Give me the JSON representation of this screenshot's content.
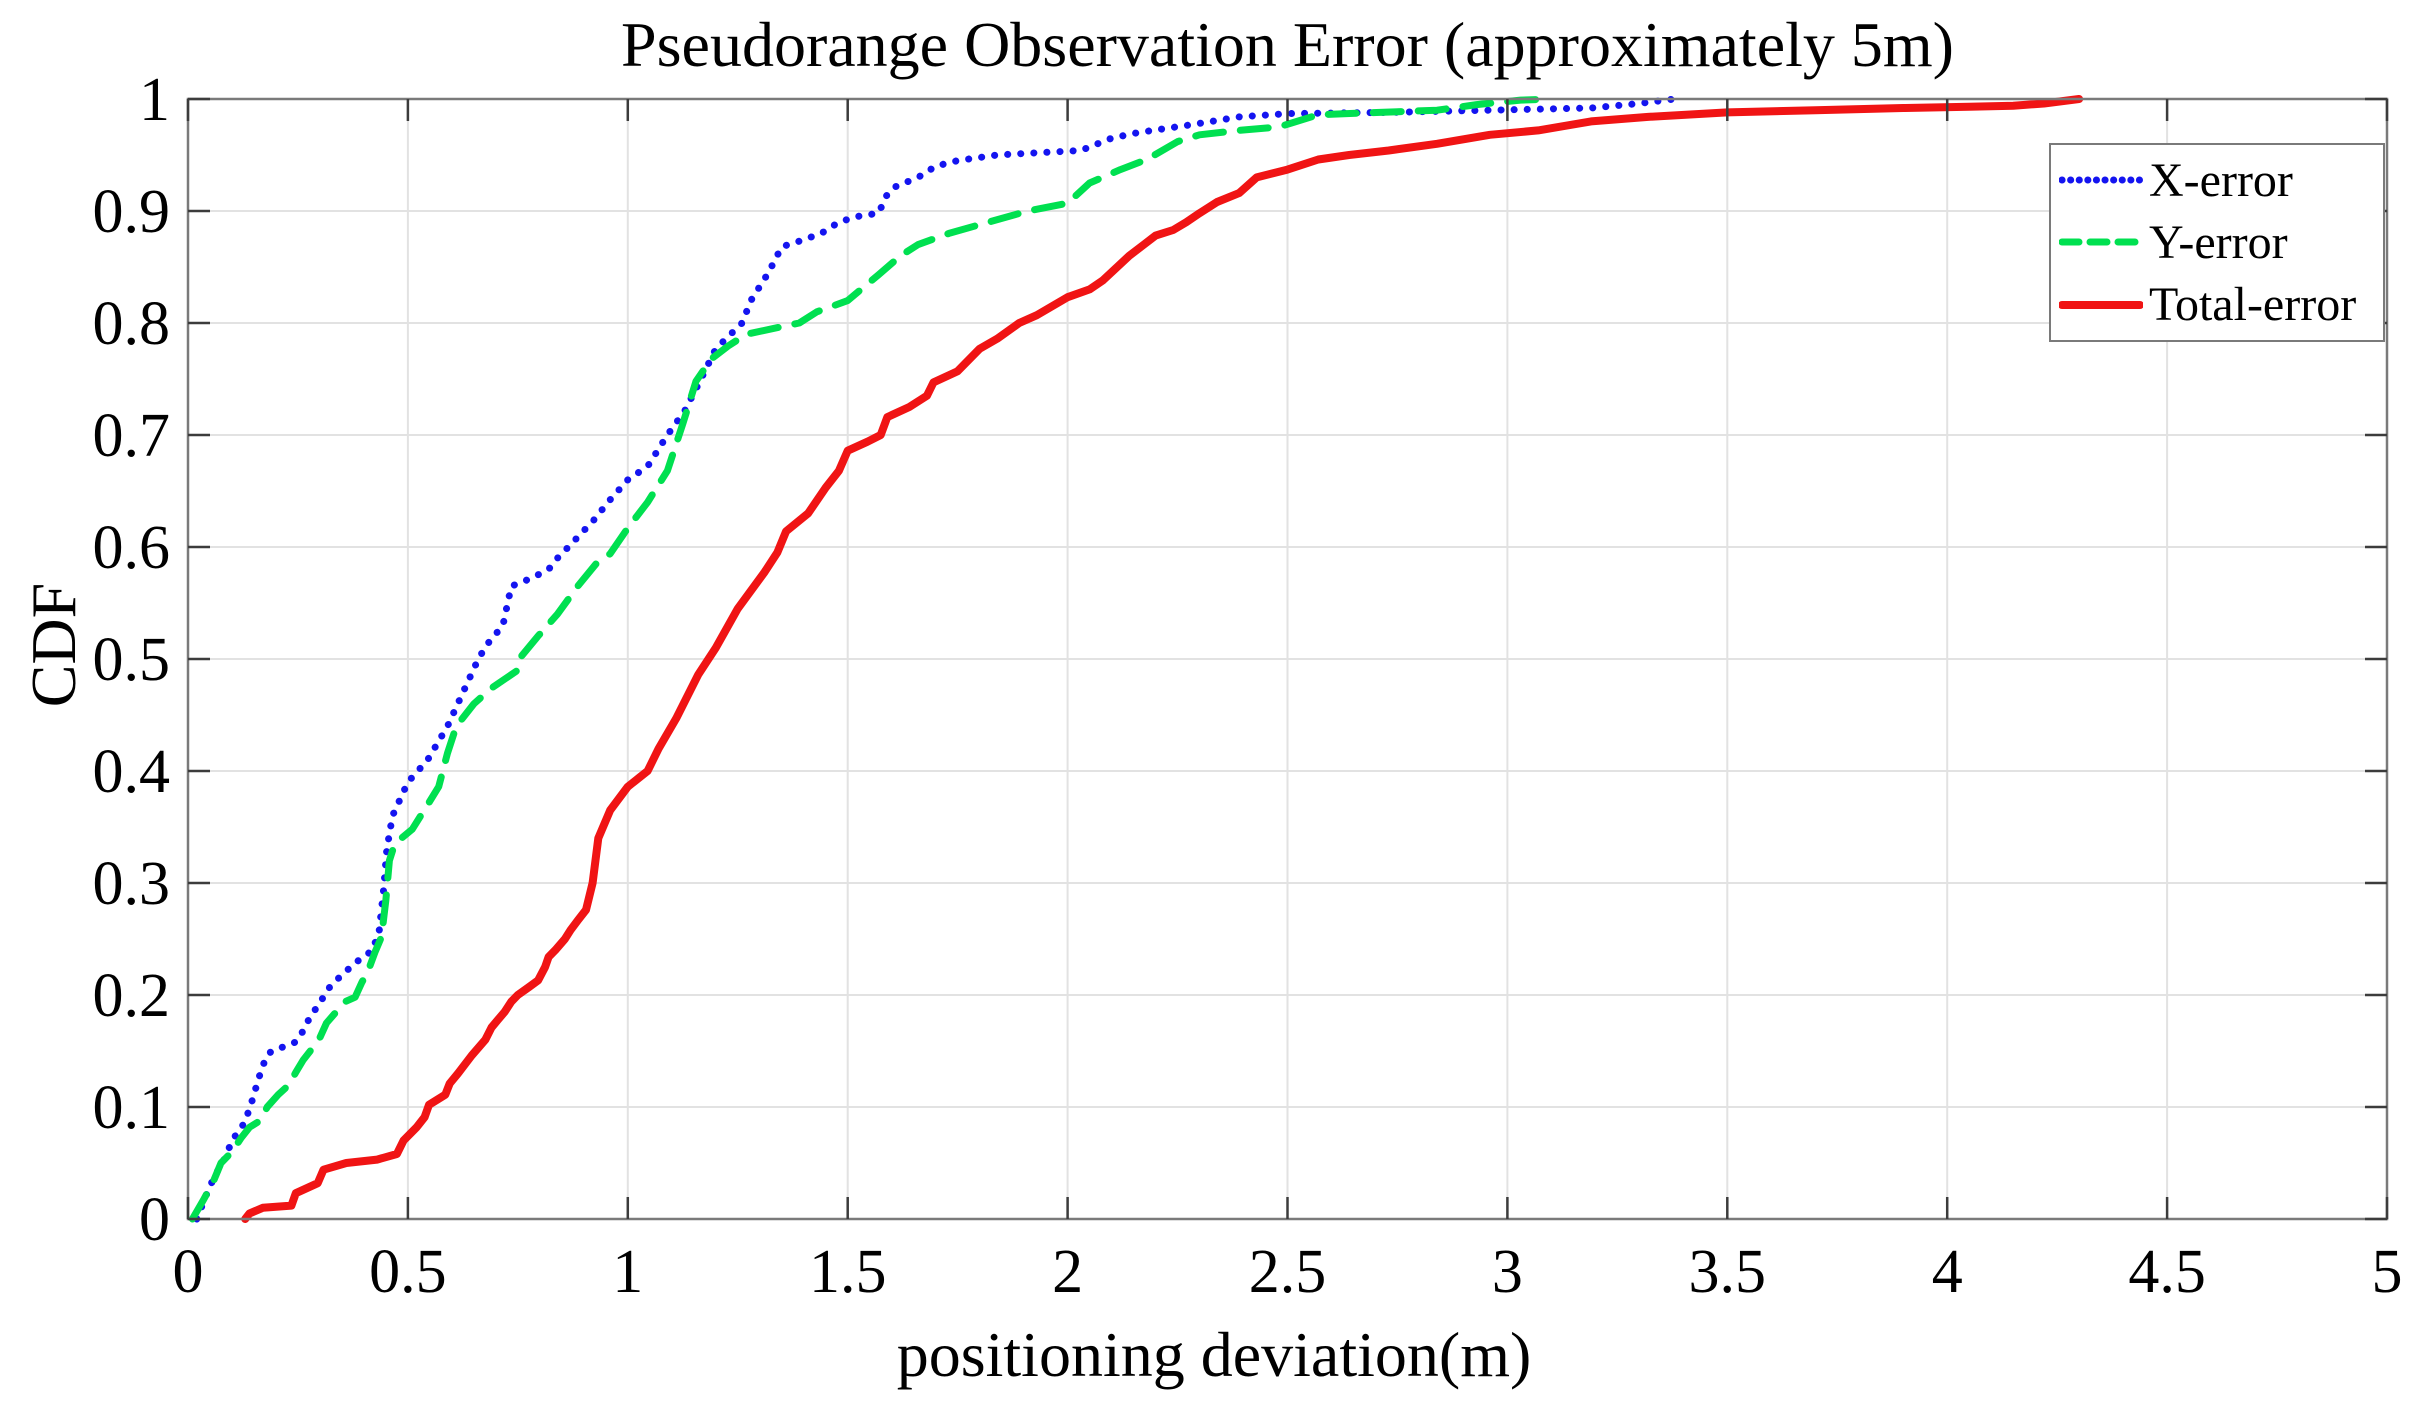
{
  "chart_data": {
    "type": "line",
    "title": "Pseudorange Observation Error (approximately 5m)",
    "xlabel": "positioning deviation(m)",
    "ylabel": "CDF",
    "xlim": [
      0,
      5
    ],
    "ylim": [
      0,
      1
    ],
    "xtick_values": [
      0,
      0.5,
      1,
      1.5,
      2,
      2.5,
      3,
      3.5,
      4,
      4.5,
      5
    ],
    "xtick_labels": [
      "0",
      "0.5",
      "1",
      "1.5",
      "2",
      "2.5",
      "3",
      "3.5",
      "4",
      "4.5",
      "5"
    ],
    "ytick_values": [
      0,
      0.1,
      0.2,
      0.3,
      0.4,
      0.5,
      0.6,
      0.7,
      0.8,
      0.9,
      1
    ],
    "ytick_labels": [
      "0",
      "0.1",
      "0.2",
      "0.3",
      "0.4",
      "0.5",
      "0.6",
      "0.7",
      "0.8",
      "0.9",
      "1"
    ],
    "grid": true,
    "legend_position": "top-right",
    "colors": {
      "grid": "#e2e2e2",
      "frame": "#7a7a7a",
      "tick": "#3c3c3c",
      "text": "#000000"
    },
    "series": [
      {
        "name": "X-error",
        "color": "#1414f0",
        "style": "dotted",
        "points": [
          [
            0.02,
            0
          ],
          [
            0.04,
            0.02
          ],
          [
            0.06,
            0.038
          ],
          [
            0.085,
            0.055
          ],
          [
            0.1,
            0.07
          ],
          [
            0.125,
            0.084
          ],
          [
            0.14,
            0.098
          ],
          [
            0.155,
            0.118
          ],
          [
            0.165,
            0.131
          ],
          [
            0.178,
            0.145
          ],
          [
            0.19,
            0.15
          ],
          [
            0.205,
            0.152
          ],
          [
            0.245,
            0.158
          ],
          [
            0.262,
            0.168
          ],
          [
            0.277,
            0.18
          ],
          [
            0.3,
            0.193
          ],
          [
            0.32,
            0.206
          ],
          [
            0.35,
            0.218
          ],
          [
            0.385,
            0.23
          ],
          [
            0.42,
            0.24
          ],
          [
            0.435,
            0.258
          ],
          [
            0.445,
            0.295
          ],
          [
            0.452,
            0.33
          ],
          [
            0.465,
            0.36
          ],
          [
            0.5,
            0.39
          ],
          [
            0.545,
            0.41
          ],
          [
            0.59,
            0.44
          ],
          [
            0.625,
            0.47
          ],
          [
            0.66,
            0.5
          ],
          [
            0.68,
            0.513
          ],
          [
            0.716,
            0.53
          ],
          [
            0.727,
            0.55
          ],
          [
            0.735,
            0.565
          ],
          [
            0.78,
            0.572
          ],
          [
            0.82,
            0.58
          ],
          [
            0.84,
            0.59
          ],
          [
            0.865,
            0.6
          ],
          [
            0.925,
            0.625
          ],
          [
            0.955,
            0.64
          ],
          [
            1.0,
            0.66
          ],
          [
            1.045,
            0.672
          ],
          [
            1.09,
            0.7
          ],
          [
            1.13,
            0.722
          ],
          [
            1.16,
            0.745
          ],
          [
            1.2,
            0.777
          ],
          [
            1.26,
            0.8
          ],
          [
            1.28,
            0.82
          ],
          [
            1.32,
            0.845
          ],
          [
            1.35,
            0.868
          ],
          [
            1.39,
            0.873
          ],
          [
            1.44,
            0.88
          ],
          [
            1.48,
            0.89
          ],
          [
            1.52,
            0.895
          ],
          [
            1.57,
            0.898
          ],
          [
            1.59,
            0.915
          ],
          [
            1.61,
            0.922
          ],
          [
            1.66,
            0.93
          ],
          [
            1.7,
            0.94
          ],
          [
            1.75,
            0.945
          ],
          [
            1.84,
            0.95
          ],
          [
            1.93,
            0.952
          ],
          [
            2.03,
            0.954
          ],
          [
            2.1,
            0.965
          ],
          [
            2.16,
            0.97
          ],
          [
            2.28,
            0.977
          ],
          [
            2.39,
            0.984
          ],
          [
            2.5,
            0.987
          ],
          [
            2.73,
            0.988
          ],
          [
            2.96,
            0.99
          ],
          [
            3.19,
            0.992
          ],
          [
            3.3,
            0.996
          ],
          [
            3.38,
            1.0
          ]
        ]
      },
      {
        "name": "Y-error",
        "color": "#00e050",
        "style": "dashed",
        "points": [
          [
            0.01,
            0
          ],
          [
            0.035,
            0.017
          ],
          [
            0.057,
            0.033
          ],
          [
            0.075,
            0.05
          ],
          [
            0.1,
            0.06
          ],
          [
            0.12,
            0.072
          ],
          [
            0.14,
            0.082
          ],
          [
            0.165,
            0.088
          ],
          [
            0.18,
            0.1
          ],
          [
            0.205,
            0.111
          ],
          [
            0.23,
            0.12
          ],
          [
            0.245,
            0.131
          ],
          [
            0.262,
            0.142
          ],
          [
            0.28,
            0.151
          ],
          [
            0.3,
            0.162
          ],
          [
            0.315,
            0.175
          ],
          [
            0.335,
            0.184
          ],
          [
            0.357,
            0.194
          ],
          [
            0.38,
            0.198
          ],
          [
            0.395,
            0.211
          ],
          [
            0.41,
            0.222
          ],
          [
            0.425,
            0.238
          ],
          [
            0.44,
            0.252
          ],
          [
            0.45,
            0.285
          ],
          [
            0.458,
            0.32
          ],
          [
            0.47,
            0.335
          ],
          [
            0.51,
            0.348
          ],
          [
            0.545,
            0.37
          ],
          [
            0.57,
            0.386
          ],
          [
            0.59,
            0.416
          ],
          [
            0.61,
            0.44
          ],
          [
            0.65,
            0.46
          ],
          [
            0.69,
            0.474
          ],
          [
            0.75,
            0.49
          ],
          [
            0.757,
            0.502
          ],
          [
            0.795,
            0.52
          ],
          [
            0.84,
            0.54
          ],
          [
            0.886,
            0.565
          ],
          [
            0.93,
            0.586
          ],
          [
            0.96,
            0.594
          ],
          [
            1.0,
            0.617
          ],
          [
            1.045,
            0.64
          ],
          [
            1.09,
            0.668
          ],
          [
            1.125,
            0.71
          ],
          [
            1.155,
            0.748
          ],
          [
            1.19,
            0.768
          ],
          [
            1.23,
            0.78
          ],
          [
            1.27,
            0.79
          ],
          [
            1.39,
            0.8
          ],
          [
            1.43,
            0.81
          ],
          [
            1.5,
            0.82
          ],
          [
            1.57,
            0.843
          ],
          [
            1.62,
            0.86
          ],
          [
            1.66,
            0.87
          ],
          [
            1.73,
            0.88
          ],
          [
            1.82,
            0.89
          ],
          [
            1.91,
            0.9
          ],
          [
            2.0,
            0.907
          ],
          [
            2.05,
            0.925
          ],
          [
            2.12,
            0.937
          ],
          [
            2.18,
            0.946
          ],
          [
            2.25,
            0.962
          ],
          [
            2.3,
            0.968
          ],
          [
            2.39,
            0.972
          ],
          [
            2.48,
            0.975
          ],
          [
            2.57,
            0.986
          ],
          [
            2.71,
            0.988
          ],
          [
            2.84,
            0.99
          ],
          [
            2.93,
            0.995
          ],
          [
            3.03,
            0.999
          ],
          [
            3.1,
            1.0
          ]
        ]
      },
      {
        "name": "Total-error",
        "color": "#f01414",
        "style": "solid",
        "points": [
          [
            0.13,
            0
          ],
          [
            0.14,
            0.005
          ],
          [
            0.17,
            0.01
          ],
          [
            0.235,
            0.012
          ],
          [
            0.245,
            0.023
          ],
          [
            0.295,
            0.032
          ],
          [
            0.308,
            0.044
          ],
          [
            0.36,
            0.05
          ],
          [
            0.43,
            0.053
          ],
          [
            0.475,
            0.058
          ],
          [
            0.49,
            0.07
          ],
          [
            0.52,
            0.082
          ],
          [
            0.538,
            0.091
          ],
          [
            0.548,
            0.102
          ],
          [
            0.585,
            0.111
          ],
          [
            0.595,
            0.121
          ],
          [
            0.614,
            0.13
          ],
          [
            0.645,
            0.146
          ],
          [
            0.676,
            0.16
          ],
          [
            0.69,
            0.171
          ],
          [
            0.705,
            0.178
          ],
          [
            0.72,
            0.185
          ],
          [
            0.735,
            0.194
          ],
          [
            0.75,
            0.2
          ],
          [
            0.775,
            0.207
          ],
          [
            0.796,
            0.213
          ],
          [
            0.812,
            0.225
          ],
          [
            0.82,
            0.234
          ],
          [
            0.835,
            0.24
          ],
          [
            0.857,
            0.25
          ],
          [
            0.87,
            0.258
          ],
          [
            0.887,
            0.267
          ],
          [
            0.905,
            0.276
          ],
          [
            0.92,
            0.3
          ],
          [
            0.933,
            0.34
          ],
          [
            0.96,
            0.365
          ],
          [
            1.0,
            0.386
          ],
          [
            1.045,
            0.4
          ],
          [
            1.07,
            0.42
          ],
          [
            1.11,
            0.447
          ],
          [
            1.16,
            0.486
          ],
          [
            1.2,
            0.51
          ],
          [
            1.25,
            0.545
          ],
          [
            1.31,
            0.577
          ],
          [
            1.34,
            0.595
          ],
          [
            1.36,
            0.614
          ],
          [
            1.41,
            0.63
          ],
          [
            1.45,
            0.653
          ],
          [
            1.48,
            0.668
          ],
          [
            1.5,
            0.686
          ],
          [
            1.545,
            0.694
          ],
          [
            1.575,
            0.7
          ],
          [
            1.59,
            0.716
          ],
          [
            1.64,
            0.725
          ],
          [
            1.68,
            0.735
          ],
          [
            1.695,
            0.747
          ],
          [
            1.75,
            0.757
          ],
          [
            1.8,
            0.777
          ],
          [
            1.84,
            0.786
          ],
          [
            1.89,
            0.8
          ],
          [
            1.93,
            0.807
          ],
          [
            2.0,
            0.823
          ],
          [
            2.05,
            0.83
          ],
          [
            2.08,
            0.838
          ],
          [
            2.14,
            0.86
          ],
          [
            2.2,
            0.878
          ],
          [
            2.24,
            0.883
          ],
          [
            2.27,
            0.89
          ],
          [
            2.3,
            0.898
          ],
          [
            2.34,
            0.908
          ],
          [
            2.39,
            0.916
          ],
          [
            2.43,
            0.93
          ],
          [
            2.5,
            0.937
          ],
          [
            2.57,
            0.946
          ],
          [
            2.64,
            0.95
          ],
          [
            2.73,
            0.954
          ],
          [
            2.84,
            0.96
          ],
          [
            2.96,
            0.968
          ],
          [
            3.07,
            0.972
          ],
          [
            3.19,
            0.98
          ],
          [
            3.32,
            0.984
          ],
          [
            3.5,
            0.988
          ],
          [
            3.7,
            0.99
          ],
          [
            3.9,
            0.992
          ],
          [
            4.05,
            0.993
          ],
          [
            4.15,
            0.994
          ],
          [
            4.22,
            0.996
          ],
          [
            4.3,
            1.0
          ]
        ]
      }
    ]
  }
}
